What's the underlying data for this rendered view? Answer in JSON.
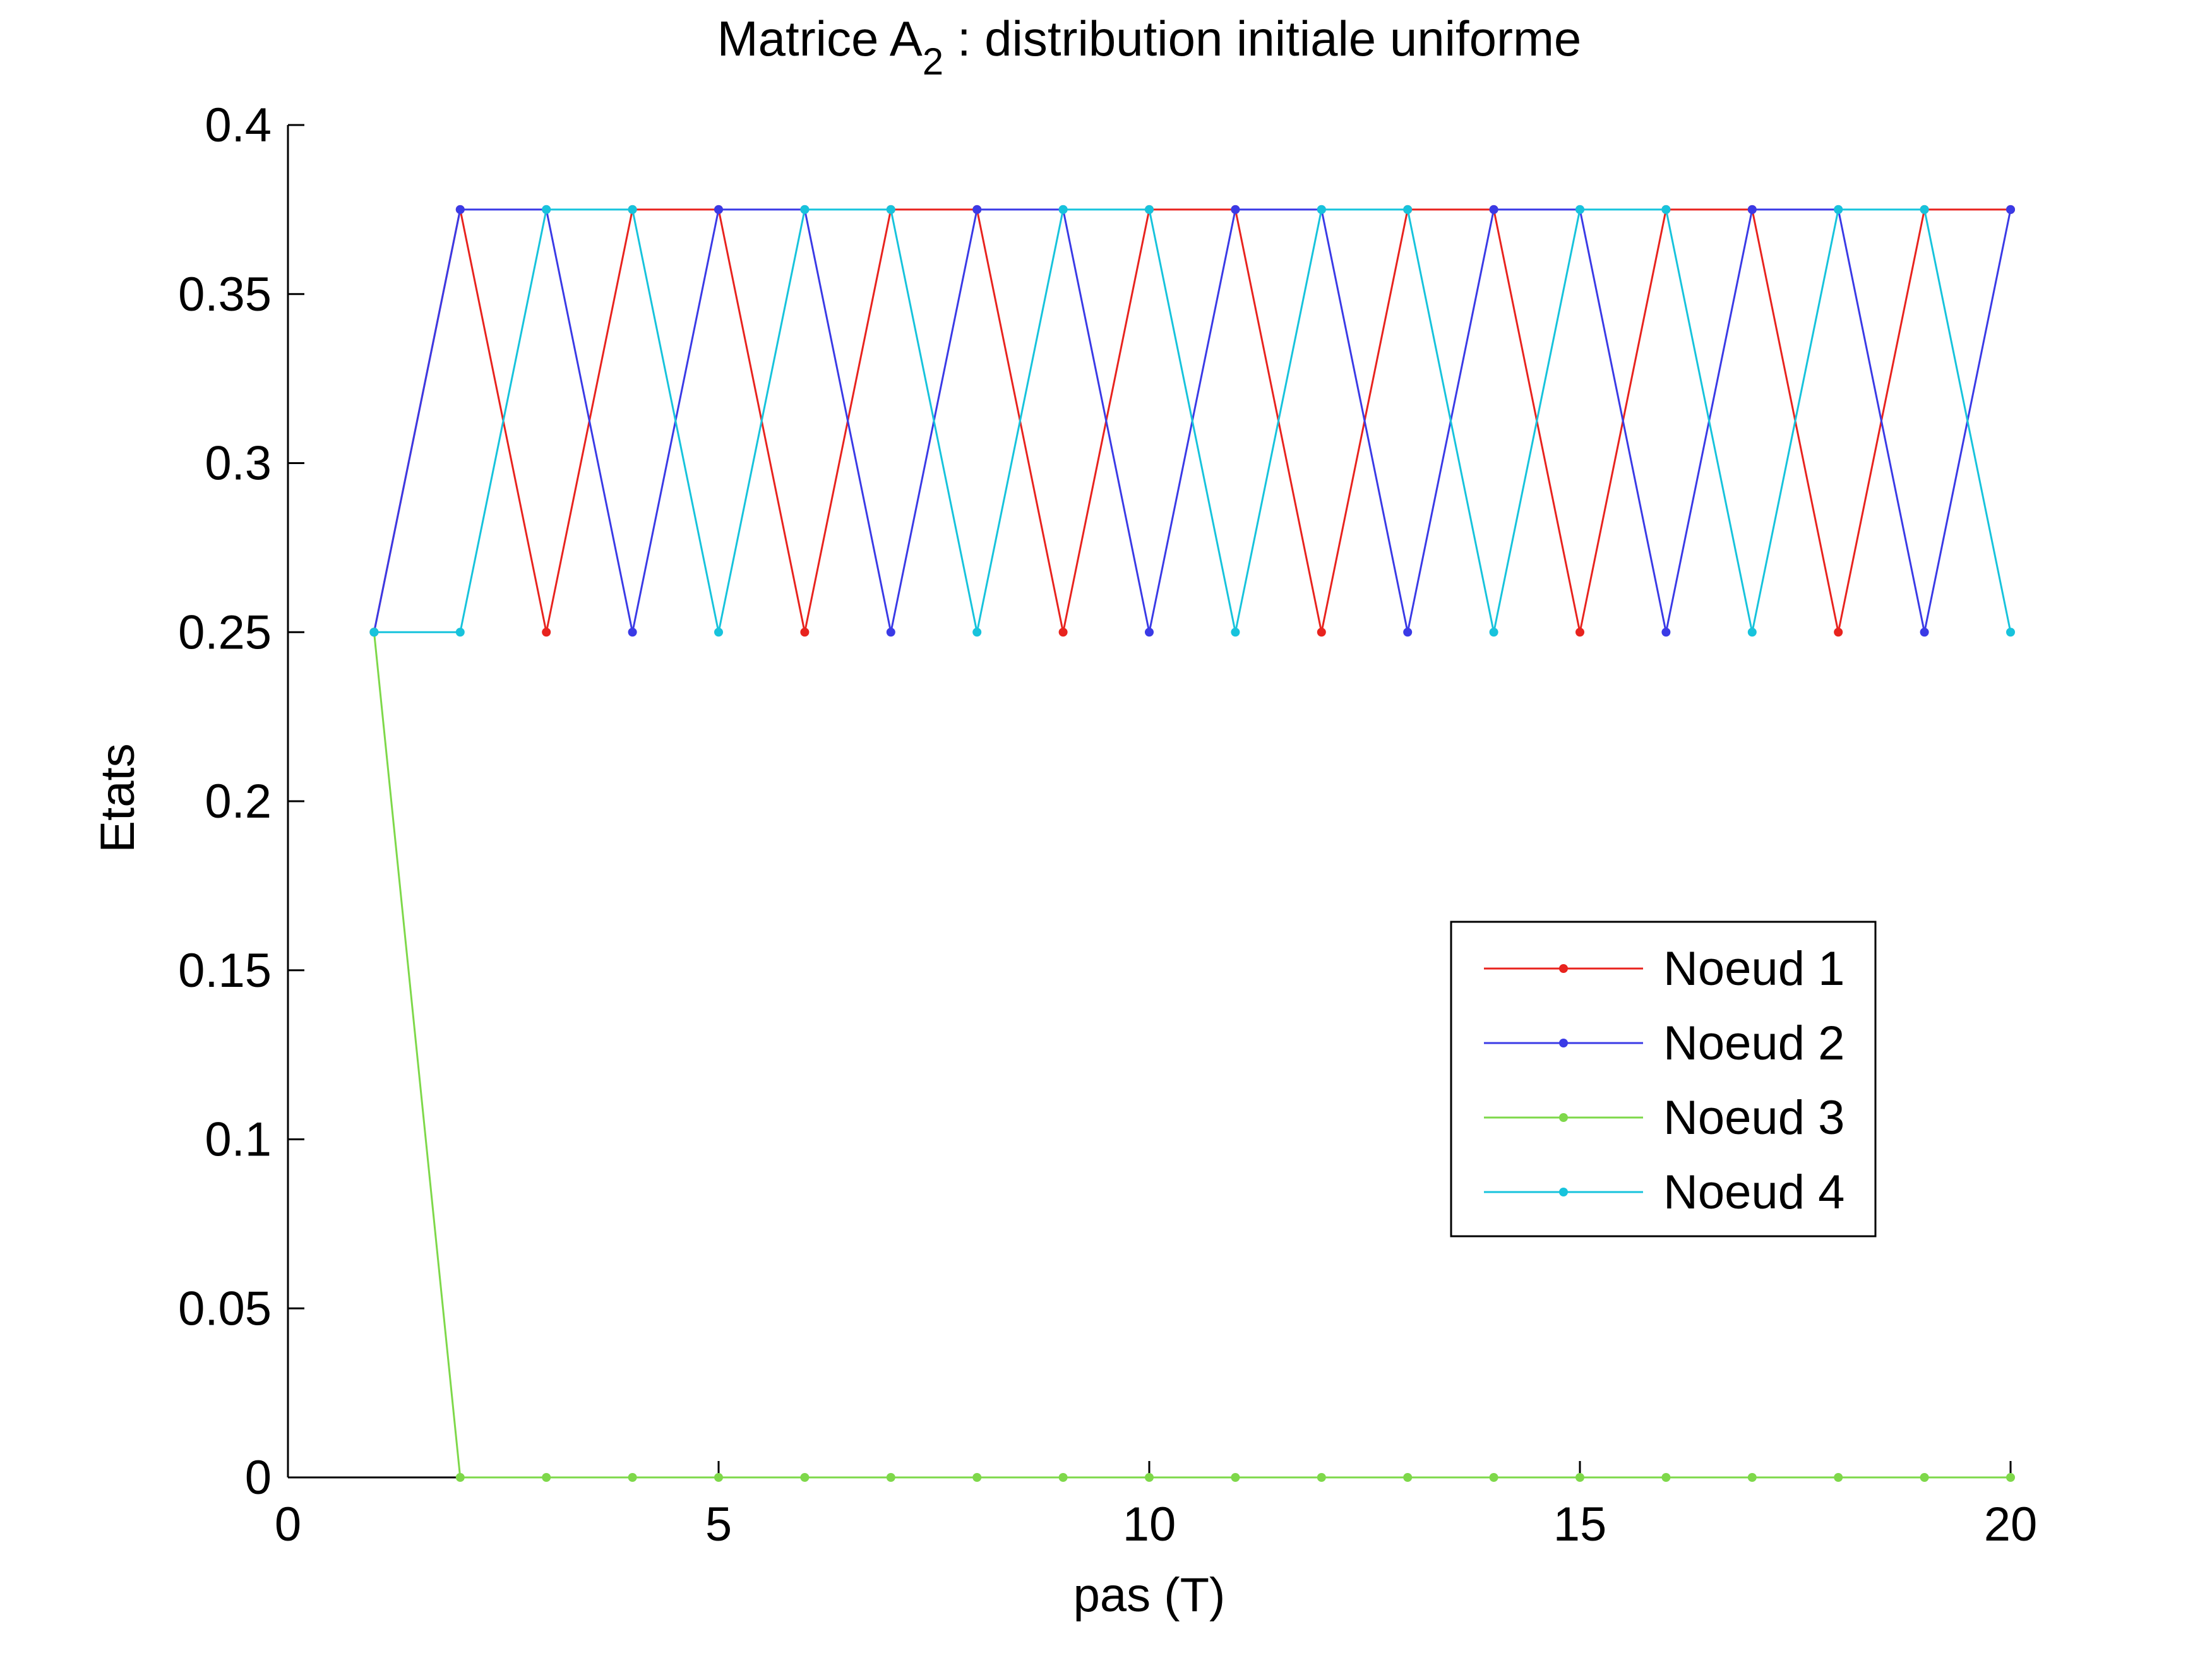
{
  "chart_data": {
    "type": "line",
    "title": {
      "main": "Matrice A",
      "subscript": "2",
      "rest": " : distribution initiale uniforme"
    },
    "xlabel": "pas (T)",
    "ylabel": "Etats",
    "xlim": [
      0,
      20
    ],
    "ylim": [
      0,
      0.4
    ],
    "xticks": [
      "0",
      "5",
      "10",
      "15",
      "20"
    ],
    "yticks": [
      "0",
      "0.05",
      "0.1",
      "0.15",
      "0.2",
      "0.25",
      "0.3",
      "0.35",
      "0.4"
    ],
    "grid": false,
    "legend_position": "right-center",
    "x": [
      1,
      2,
      3,
      4,
      5,
      6,
      7,
      8,
      9,
      10,
      11,
      12,
      13,
      14,
      15,
      16,
      17,
      18,
      19,
      20
    ],
    "series": [
      {
        "name": "Noeud 1",
        "color": "#e8231e",
        "values": [
          0.25,
          0.375,
          0.25,
          0.375,
          0.375,
          0.25,
          0.375,
          0.375,
          0.25,
          0.375,
          0.375,
          0.25,
          0.375,
          0.375,
          0.25,
          0.375,
          0.375,
          0.25,
          0.375,
          0.375
        ]
      },
      {
        "name": "Noeud 2",
        "color": "#3a3ae6",
        "values": [
          0.25,
          0.375,
          0.375,
          0.25,
          0.375,
          0.375,
          0.25,
          0.375,
          0.375,
          0.25,
          0.375,
          0.375,
          0.25,
          0.375,
          0.375,
          0.25,
          0.375,
          0.375,
          0.25,
          0.375
        ]
      },
      {
        "name": "Noeud 3",
        "color": "#7ed84a",
        "values": [
          0.25,
          0,
          0,
          0,
          0,
          0,
          0,
          0,
          0,
          0,
          0,
          0,
          0,
          0,
          0,
          0,
          0,
          0,
          0,
          0
        ]
      },
      {
        "name": "Noeud 4",
        "color": "#17c3dc",
        "values": [
          0.25,
          0.25,
          0.375,
          0.375,
          0.25,
          0.375,
          0.375,
          0.25,
          0.375,
          0.375,
          0.25,
          0.375,
          0.375,
          0.25,
          0.375,
          0.375,
          0.25,
          0.375,
          0.375,
          0.25
        ]
      }
    ]
  }
}
